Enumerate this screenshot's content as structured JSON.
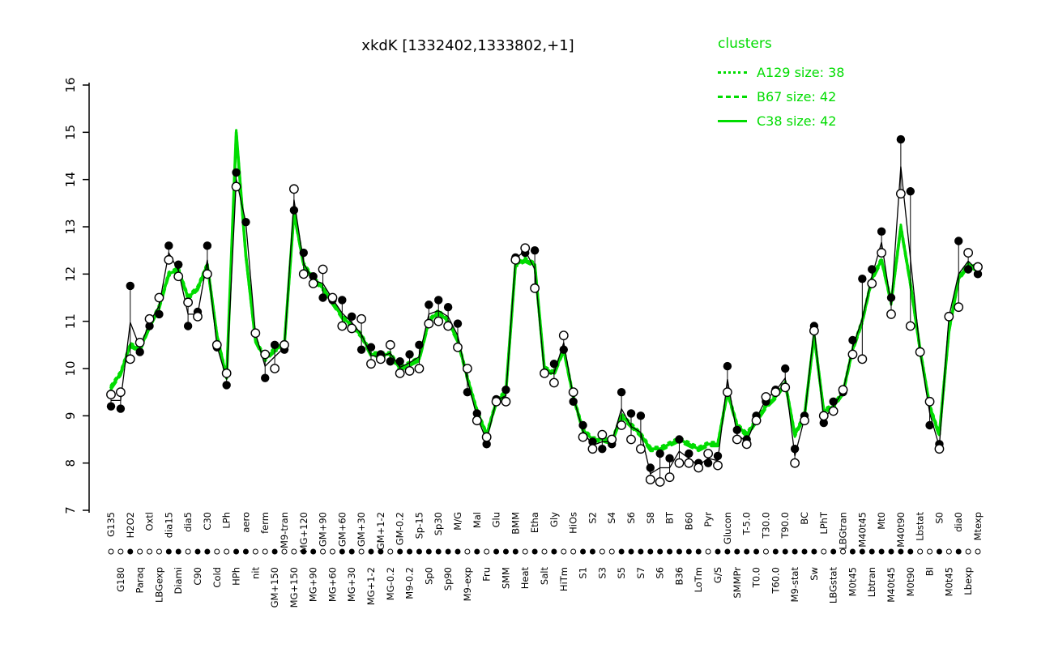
{
  "title": "xkdK [1332402,1333802,+1]",
  "legend": {
    "header": "clusters",
    "color": "#00DC00",
    "items": [
      {
        "label": "A129 size: 38",
        "style": "dotted"
      },
      {
        "label": "B67 size: 42",
        "style": "dashed"
      },
      {
        "label": "C38 size: 42",
        "style": "solid"
      }
    ]
  },
  "chart_data": {
    "type": "line",
    "title": "xkdK [1332402,1333802,+1]",
    "xlabel": "",
    "ylabel": "",
    "ylim": [
      7,
      16
    ],
    "yticks": [
      7,
      8,
      9,
      10,
      11,
      12,
      13,
      14,
      15,
      16
    ],
    "grid": false,
    "legend_position": "top-right",
    "x_label_rotation": -90,
    "x_label_rows": "staggered",
    "categories": [
      "G135",
      "G180",
      "H2O2",
      "Paraq",
      "Oxtl",
      "LBGexp",
      "dia15",
      "Diami",
      "dia5",
      "C90",
      "C30",
      "Cold",
      "LPh",
      "HPh",
      "aero",
      "nit",
      "ferm",
      "GM+150",
      "M9-tran",
      "MG+150",
      "MG+120",
      "MG+90",
      "GM+90",
      "MG+60",
      "GM+60",
      "MG+30",
      "GM+30",
      "MG+1-2",
      "GM+1-2",
      "MG-0.2",
      "GM-0.2",
      "M9-0.2",
      "Sp-15",
      "Sp0",
      "Sp30",
      "Sp90",
      "M/G",
      "M9-exp",
      "Mal",
      "Fru",
      "Glu",
      "SMM",
      "BMM",
      "Heat",
      "Etha",
      "Salt",
      "Gly",
      "HiTm",
      "HiOs",
      "S1",
      "S2",
      "S3",
      "S4",
      "S5",
      "S6",
      "S7",
      "S8",
      "S6",
      "BT",
      "B36",
      "B60",
      "LoTm",
      "Pyr",
      "G/S",
      "Glucon",
      "SMMPr",
      "T-5.0",
      "T0.0",
      "T30.0",
      "T60.0",
      "T90.0",
      "M9-stat",
      "BC",
      "Sw",
      "LPhT",
      "LBGstat",
      "LBGtran",
      "M0t45",
      "M40t45",
      "Lbtran",
      "Mt0",
      "M40t45",
      "M40t90",
      "M0t90",
      "Lbstat",
      "BI",
      "S0",
      "M0t45",
      "dia0",
      "Lbexp",
      "Mtexp"
    ],
    "series": [
      {
        "name": "filled-points",
        "marker": "filled-circle",
        "color": "#000000",
        "values": [
          9.2,
          9.15,
          11.75,
          10.35,
          10.9,
          11.15,
          12.6,
          12.2,
          10.9,
          11.2,
          12.6,
          10.45,
          9.65,
          14.15,
          13.1,
          null,
          9.8,
          10.5,
          10.4,
          13.35,
          12.45,
          11.95,
          11.5,
          11.45,
          11.45,
          11.1,
          10.4,
          10.45,
          10.3,
          10.15,
          10.15,
          10.3,
          10.5,
          11.35,
          11.45,
          11.3,
          10.95,
          9.5,
          9.05,
          8.4,
          9.35,
          9.55,
          12.35,
          12.45,
          12.5,
          null,
          10.1,
          10.4,
          9.3,
          8.8,
          8.45,
          8.3,
          8.4,
          9.5,
          9.05,
          9.0,
          7.9,
          8.2,
          8.1,
          8.5,
          8.2,
          8.0,
          8.0,
          8.15,
          10.05,
          8.7,
          8.5,
          9.0,
          9.3,
          9.55,
          10.0,
          8.3,
          9.0,
          10.9,
          8.85,
          9.3,
          9.5,
          10.6,
          11.9,
          12.1,
          12.9,
          11.5,
          14.85,
          13.75,
          null,
          8.8,
          8.4,
          null,
          12.7,
          12.1,
          12.0
        ]
      },
      {
        "name": "open-points",
        "marker": "open-circle",
        "color": "#000000",
        "values": [
          9.45,
          9.5,
          10.2,
          10.55,
          11.05,
          11.5,
          12.3,
          11.95,
          11.4,
          11.1,
          12.0,
          10.5,
          9.9,
          13.85,
          null,
          10.75,
          10.3,
          10.0,
          10.5,
          13.8,
          12.0,
          11.8,
          12.1,
          11.5,
          10.9,
          10.85,
          11.05,
          10.1,
          10.2,
          10.5,
          9.9,
          9.95,
          10.0,
          10.95,
          11.0,
          10.9,
          10.45,
          10.0,
          8.9,
          8.55,
          9.3,
          9.3,
          12.3,
          12.55,
          11.7,
          9.9,
          9.7,
          10.7,
          9.5,
          8.55,
          8.3,
          8.6,
          8.5,
          8.8,
          8.5,
          8.3,
          7.65,
          7.6,
          7.7,
          8.0,
          8.0,
          7.9,
          8.2,
          7.95,
          9.5,
          8.5,
          8.4,
          8.9,
          9.4,
          9.5,
          9.6,
          8.0,
          8.9,
          10.8,
          9.0,
          9.1,
          9.55,
          10.3,
          10.2,
          11.8,
          12.45,
          11.15,
          13.7,
          10.9,
          10.35,
          9.3,
          8.3,
          11.1,
          11.3,
          12.45,
          12.15
        ]
      },
      {
        "name": "cluster-mean",
        "marker": "none",
        "color": "#00DC00",
        "values": [
          9.6,
          9.9,
          10.5,
          10.4,
          10.9,
          11.3,
          12.0,
          12.1,
          11.5,
          11.7,
          12.2,
          10.7,
          9.8,
          15.0,
          12.4,
          10.6,
          10.2,
          10.4,
          10.5,
          13.3,
          12.2,
          11.9,
          11.7,
          11.4,
          11.1,
          10.9,
          10.7,
          10.3,
          10.3,
          10.3,
          10.0,
          10.1,
          10.2,
          11.0,
          11.2,
          11.0,
          10.6,
          9.8,
          9.1,
          8.6,
          9.3,
          9.5,
          12.2,
          12.3,
          12.2,
          10.0,
          9.9,
          10.4,
          9.4,
          8.7,
          8.5,
          8.5,
          8.45,
          9.0,
          8.8,
          8.6,
          8.3,
          8.3,
          8.4,
          8.5,
          8.4,
          8.3,
          8.4,
          8.4,
          9.5,
          8.8,
          8.6,
          8.9,
          9.2,
          9.4,
          9.7,
          8.6,
          9.0,
          10.7,
          9.1,
          9.2,
          9.5,
          10.4,
          11.0,
          11.9,
          12.3,
          11.4,
          13.0,
          11.8,
          10.4,
          9.2,
          8.6,
          10.8,
          11.9,
          12.2,
          12.1
        ]
      }
    ]
  }
}
